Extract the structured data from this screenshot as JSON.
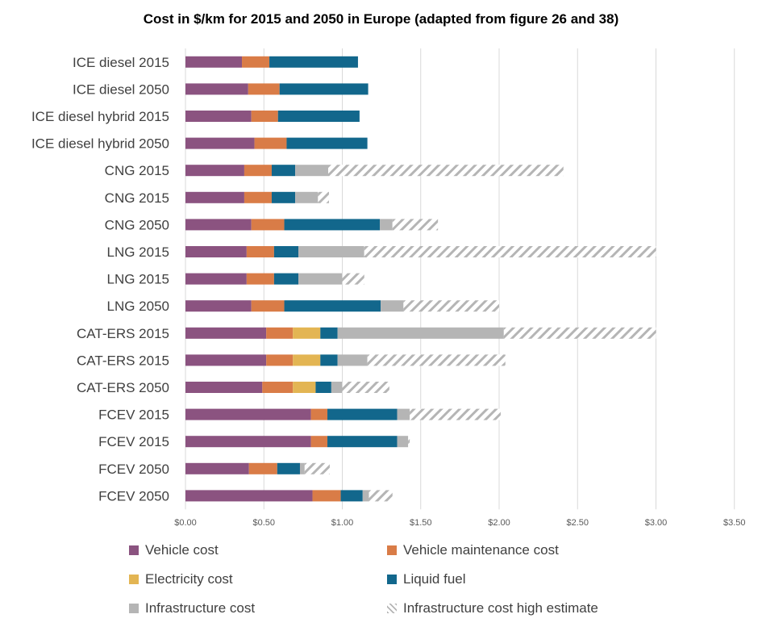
{
  "chart_data": {
    "type": "bar",
    "orientation": "horizontal",
    "stacked": true,
    "title": "Cost in $/km for 2015 and 2050 in Europe (adapted from figure 26 and 38)",
    "xlabel": "",
    "ylabel": "",
    "xlim": [
      0,
      3.5
    ],
    "xticks": [
      0,
      0.5,
      1.0,
      1.5,
      2.0,
      2.5,
      3.0,
      3.5
    ],
    "xtick_labels": [
      "$0.00",
      "$0.50",
      "$1.00",
      "$1.50",
      "$2.00",
      "$2.50",
      "$3.00",
      "$3.50"
    ],
    "grid": "vertical",
    "legend_position": "bottom",
    "categories": [
      "ICE diesel 2015",
      "ICE diesel 2050",
      "ICE diesel hybrid 2015",
      "ICE diesel hybrid 2050",
      "CNG 2015",
      "CNG 2015",
      "CNG 2050",
      "LNG 2015",
      "LNG 2015",
      "LNG 2050",
      "CAT-ERS 2015",
      "CAT-ERS 2015",
      "CAT-ERS 2050",
      "FCEV 2015",
      "FCEV 2015",
      "FCEV 2050",
      "FCEV 2050"
    ],
    "series": [
      {
        "name": "Vehicle cost",
        "color": "#8B5380",
        "pattern": "solid",
        "values": [
          0.36,
          0.4,
          0.42,
          0.44,
          0.375,
          0.375,
          0.42,
          0.39,
          0.39,
          0.42,
          0.515,
          0.515,
          0.49,
          0.8,
          0.8,
          0.405,
          0.81
        ]
      },
      {
        "name": "Vehicle maintenance cost",
        "color": "#D97C47",
        "pattern": "solid",
        "values": [
          0.175,
          0.2,
          0.17,
          0.205,
          0.175,
          0.175,
          0.21,
          0.175,
          0.175,
          0.21,
          0.17,
          0.17,
          0.195,
          0.105,
          0.105,
          0.18,
          0.18
        ]
      },
      {
        "name": "Electricity cost",
        "color": "#E3B553",
        "pattern": "solid",
        "values": [
          0,
          0,
          0,
          0,
          0,
          0,
          0,
          0,
          0,
          0,
          0.175,
          0.175,
          0.145,
          0,
          0,
          0,
          0
        ]
      },
      {
        "name": "Liquid fuel",
        "color": "#12678C",
        "pattern": "solid",
        "values": [
          0.565,
          0.565,
          0.52,
          0.515,
          0.15,
          0.15,
          0.61,
          0.155,
          0.155,
          0.615,
          0.11,
          0.11,
          0.1,
          0.445,
          0.445,
          0.145,
          0.14
        ]
      },
      {
        "name": "Infrastructure cost",
        "color": "#B5B5B5",
        "pattern": "solid",
        "values": [
          0,
          0,
          0,
          0,
          0.21,
          0.145,
          0.08,
          0.42,
          0.28,
          0.145,
          1.06,
          0.19,
          0.07,
          0.08,
          0.07,
          0.03,
          0.04
        ]
      },
      {
        "name": "Infrastructure cost high estimate",
        "color": "#B5B5B5",
        "pattern": "hatched",
        "values": [
          0,
          0,
          0,
          0,
          1.5,
          0.07,
          0.29,
          1.86,
          0.14,
          0.61,
          0.97,
          0.88,
          0.3,
          0.58,
          0.01,
          0.16,
          0.15
        ]
      }
    ]
  }
}
